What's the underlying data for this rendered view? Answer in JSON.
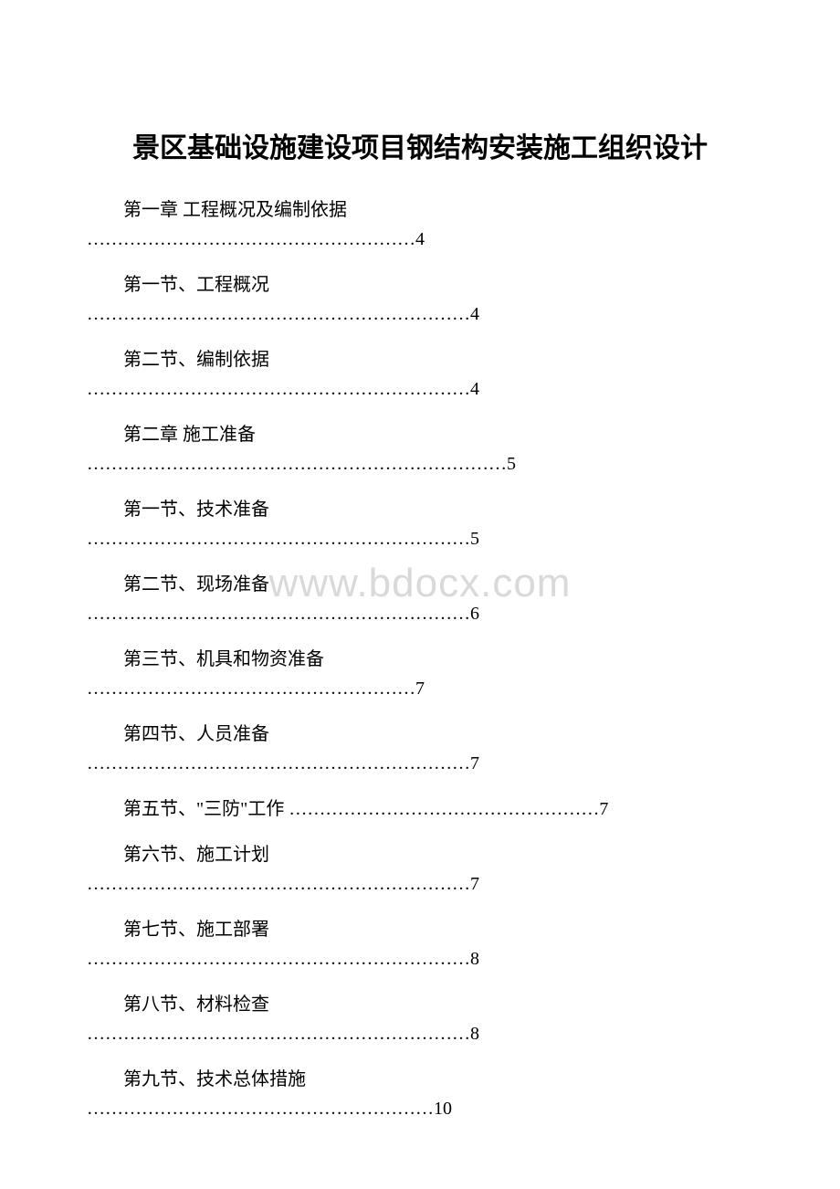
{
  "title": "景区基础设施建设项目钢结构安装施工组织设计",
  "watermark": "www.bdocx.com",
  "typography": {
    "title_fontsize": 30,
    "body_fontsize": 20,
    "font_family": "SimSun",
    "text_color": "#000000",
    "watermark_color": "#d9d9d9",
    "watermark_fontsize": 44,
    "background_color": "#ffffff"
  },
  "toc": [
    {
      "label": "第一章 工程概况及编制依据",
      "leader": "………………………………………………4",
      "inline": false
    },
    {
      "label": "第一节、工程概况",
      "leader": "………………………………………………………4",
      "inline": false
    },
    {
      "label": "第二节、编制依据",
      "leader": "………………………………………………………4",
      "inline": false
    },
    {
      "label": "第二章 施工准备",
      "leader": "……………………………………………………………5",
      "inline": false
    },
    {
      "label": "第一节、技术准备",
      "leader": "………………………………………………………5",
      "inline": false
    },
    {
      "label": "第二节、现场准备",
      "leader": "………………………………………………………6",
      "inline": false
    },
    {
      "label": "第三节、机具和物资准备",
      "leader": "………………………………………………7",
      "inline": false
    },
    {
      "label": "第四节、人员准备",
      "leader": "………………………………………………………7",
      "inline": false
    },
    {
      "label": "第五节、\"三防\"工作 ……………………………………………7",
      "leader": "",
      "inline": true
    },
    {
      "label": "第六节、施工计划",
      "leader": "………………………………………………………7",
      "inline": false
    },
    {
      "label": "第七节、施工部署",
      "leader": "………………………………………………………8",
      "inline": false
    },
    {
      "label": "第八节、材料检查",
      "leader": "………………………………………………………8",
      "inline": false
    },
    {
      "label": "第九节、技术总体措施",
      "leader": "…………………………………………………10",
      "inline": false
    }
  ]
}
